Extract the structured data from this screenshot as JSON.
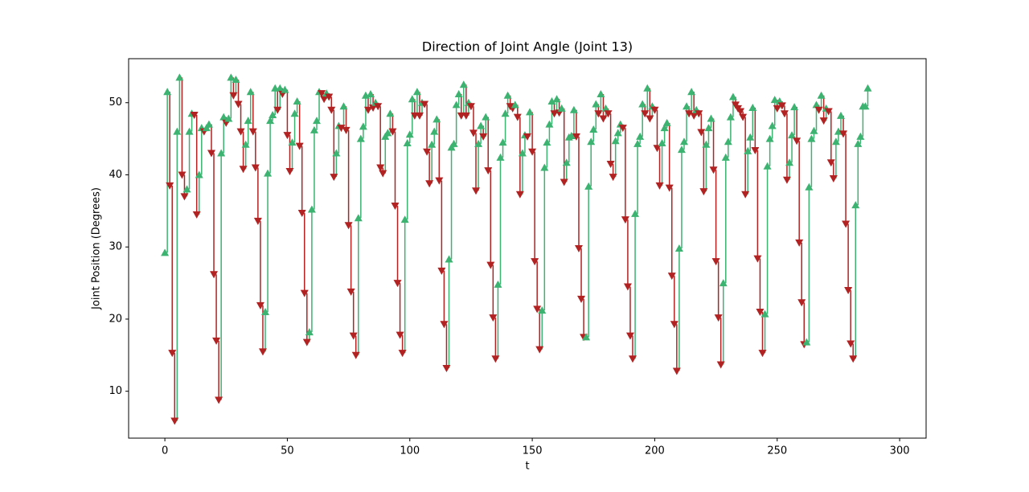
{
  "chart_data": {
    "type": "direction",
    "title": "Direction of Joint Angle (Joint 13)",
    "x_label": "t",
    "y_label": "Joint Position (Degrees)",
    "up_color": "#3cb371",
    "down_color": "#b22222",
    "xlim": [
      -14.8,
      310.8
    ],
    "xticks": [
      0,
      50,
      100,
      150,
      200,
      250,
      300
    ],
    "ylim": [
      3.5,
      56.1
    ],
    "yticks": [
      10,
      20,
      30,
      40,
      50
    ],
    "values": [
      29.2,
      51.5,
      38.5,
      15.3,
      5.9,
      46,
      53.5,
      40,
      37,
      38,
      46,
      48.5,
      48.3,
      34.5,
      40,
      46.5,
      46,
      46.5,
      47,
      43,
      26.2,
      17,
      8.8,
      43,
      48,
      47.2,
      47.8,
      53.5,
      51,
      53.2,
      49.8,
      46,
      40.8,
      44.2,
      47.5,
      51.5,
      46,
      41,
      33.6,
      21.9,
      15.5,
      21,
      40.2,
      47.5,
      48.3,
      52,
      49,
      52,
      51.2,
      51.8,
      45.5,
      40.5,
      44.5,
      48.5,
      50.2,
      44,
      34.7,
      23.6,
      16.8,
      18.2,
      35.2,
      46.2,
      47.5,
      51.5,
      51.3,
      50.5,
      51.3,
      50.8,
      49,
      39.7,
      43,
      46.8,
      46.5,
      49.5,
      46.2,
      33,
      23.8,
      17.7,
      15,
      34,
      45,
      46.7,
      51,
      49,
      51.2,
      49.3,
      50,
      49.5,
      41,
      40.2,
      45.3,
      45.8,
      48.5,
      46,
      35.7,
      25,
      17.8,
      15.3,
      33.8,
      44.4,
      45.6,
      50.5,
      48.2,
      51.5,
      48.2,
      50,
      49.8,
      43.2,
      38.8,
      44.2,
      46,
      47.7,
      39.2,
      26.7,
      19.3,
      13.2,
      28.3,
      43.8,
      44.3,
      49.7,
      51.2,
      48.2,
      52.5,
      48.2,
      50,
      49.5,
      45.8,
      37.8,
      44.3,
      46.8,
      45.3,
      48,
      40.6,
      27.5,
      20.2,
      14.5,
      24.8,
      42.4,
      44.5,
      48.5,
      51,
      49.5,
      49.2,
      49.7,
      48,
      37.3,
      43,
      45.5,
      45.3,
      48.7,
      43.2,
      28,
      21.4,
      15.8,
      21.2,
      41,
      44.5,
      47,
      50.2,
      48.5,
      50.5,
      48.6,
      49.2,
      39,
      41.7,
      45.2,
      45.4,
      49,
      45.3,
      29.8,
      22.8,
      17.5,
      17.5,
      38.4,
      44.6,
      46.3,
      49.8,
      48.5,
      51.2,
      47.8,
      49.2,
      48.5,
      41.5,
      39.7,
      44.7,
      45.8,
      47,
      46.5,
      33.8,
      24.5,
      17.7,
      14.5,
      34.6,
      44.3,
      45.3,
      49.8,
      48.5,
      52,
      47.8,
      49.5,
      49,
      43.7,
      38.5,
      44.4,
      46.5,
      47.2,
      38.2,
      26,
      19.3,
      12.8,
      29.8,
      43.5,
      44.6,
      49.5,
      48.5,
      51.5,
      48.2,
      49,
      48.5,
      45.9,
      37.7,
      44.2,
      46.5,
      47.8,
      40.7,
      28,
      20.2,
      13.7,
      25,
      42.4,
      44.6,
      48,
      50.8,
      49.7,
      49.2,
      48.8,
      48,
      37.3,
      43.3,
      45.2,
      49.3,
      43.4,
      28.4,
      21,
      15.3,
      20.7,
      41.2,
      45,
      46.8,
      50.4,
      49.2,
      50.2,
      49.6,
      48.5,
      39.3,
      41.7,
      45.5,
      49.4,
      44.7,
      30.6,
      22.3,
      16.5,
      16.8,
      38.3,
      45,
      46.1,
      49.7,
      49,
      51,
      47.5,
      49.2,
      48.8,
      41.7,
      39.5,
      44.6,
      46,
      48.2,
      45.7,
      33.2,
      24,
      16.6,
      14.5,
      35.8,
      44.3,
      45.3,
      49.5,
      49.5,
      52
    ]
  }
}
